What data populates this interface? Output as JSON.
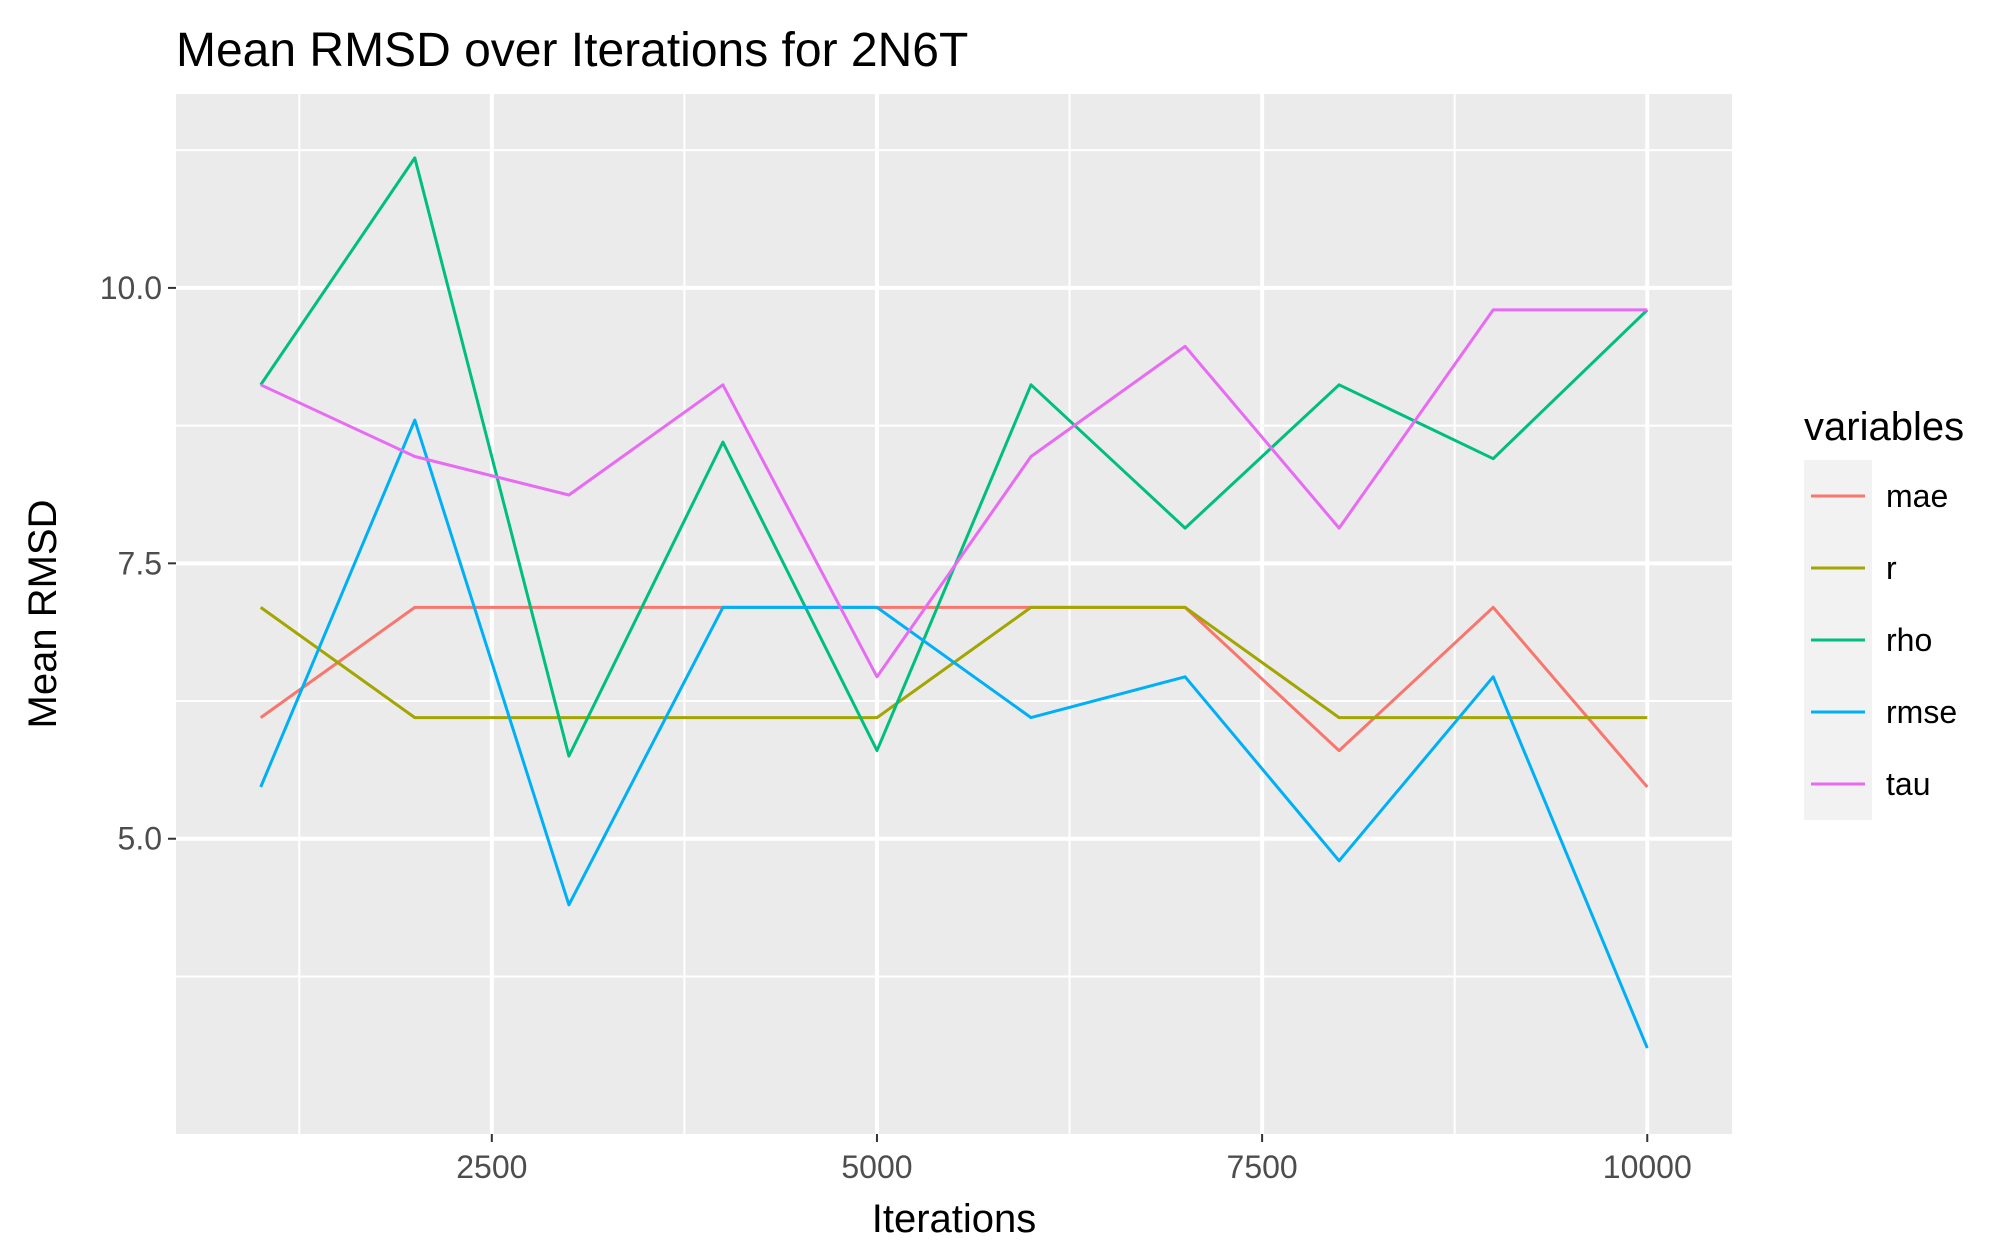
{
  "chart_data": {
    "type": "line",
    "title": "Mean RMSD over Iterations for 2N6T",
    "xlabel": "Iterations",
    "ylabel": "Mean RMSD",
    "xlim": [
      450,
      10550
    ],
    "ylim": [
      2.32,
      11.76
    ],
    "x_ticks": [
      2500,
      5000,
      7500,
      10000
    ],
    "x_tick_labels": [
      "2500",
      "5000",
      "7500",
      "10000"
    ],
    "y_ticks": [
      5.0,
      7.5,
      10.0
    ],
    "y_tick_labels": [
      "5.0",
      "7.5",
      "10.0"
    ],
    "x_minor": [
      1250,
      3750,
      6250,
      8750
    ],
    "y_minor": [
      3.75,
      6.25,
      8.75,
      11.25
    ],
    "grid": true,
    "panel_background": "#ebebeb",
    "legend": {
      "title": "variables",
      "position": "right"
    },
    "x": [
      1000,
      2000,
      3000,
      4000,
      5000,
      6000,
      7000,
      8000,
      9000,
      10000
    ],
    "series": [
      {
        "name": "mae",
        "color": "#F8766D",
        "values": [
          6.1,
          7.1,
          7.1,
          7.1,
          7.1,
          7.1,
          7.1,
          5.8,
          7.1,
          5.47
        ]
      },
      {
        "name": "r",
        "color": "#A3A500",
        "values": [
          7.1,
          6.1,
          6.1,
          6.1,
          6.1,
          7.1,
          7.1,
          6.1,
          6.1,
          6.1
        ]
      },
      {
        "name": "rho",
        "color": "#00BF7D",
        "values": [
          9.12,
          11.18,
          5.75,
          8.6,
          5.8,
          9.12,
          7.82,
          9.12,
          8.45,
          9.8
        ]
      },
      {
        "name": "rmse",
        "color": "#00B0F6",
        "values": [
          5.47,
          8.8,
          4.4,
          7.1,
          7.1,
          6.1,
          6.47,
          4.8,
          6.47,
          3.1
        ]
      },
      {
        "name": "tau",
        "color": "#E76BF3",
        "values": [
          9.12,
          8.47,
          8.12,
          9.12,
          6.47,
          8.47,
          9.47,
          7.82,
          9.8,
          9.8
        ]
      }
    ]
  }
}
